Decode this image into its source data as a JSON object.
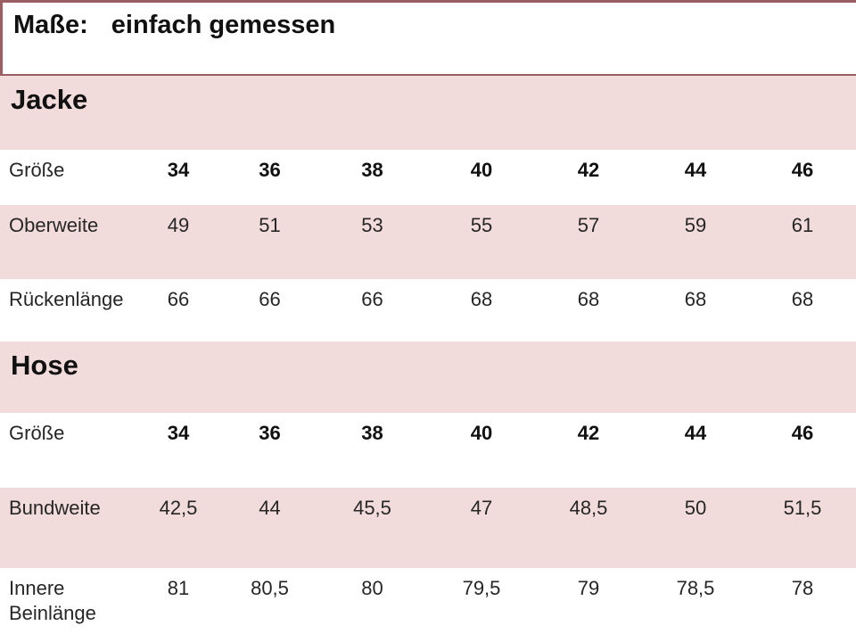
{
  "header": {
    "title_label": "Maße:",
    "title_subtitle": "einfach gemessen"
  },
  "colors": {
    "pink": "#F2DCDB",
    "maroon": "#9A5F62",
    "text": "#262626"
  },
  "tables": [
    {
      "section": "Jacke",
      "rows": [
        {
          "label": "Größe",
          "values": [
            "34",
            "36",
            "38",
            "40",
            "42",
            "44",
            "46"
          ]
        },
        {
          "label": "Oberweite",
          "values": [
            "49",
            "51",
            "53",
            "55",
            "57",
            "59",
            "61"
          ]
        },
        {
          "label": "Rückenlänge",
          "values": [
            "66",
            "66",
            "66",
            "68",
            "68",
            "68",
            "68"
          ]
        }
      ]
    },
    {
      "section": "Hose",
      "rows": [
        {
          "label": "Größe",
          "values": [
            "34",
            "36",
            "38",
            "40",
            "42",
            "44",
            "46"
          ]
        },
        {
          "label": "Bundweite",
          "values": [
            "42,5",
            "44",
            "45,5",
            "47",
            "48,5",
            "50",
            "51,5"
          ]
        },
        {
          "label": "Innere Beinlänge",
          "values": [
            "81",
            "80,5",
            "80",
            "79,5",
            "79",
            "78,5",
            "78"
          ]
        }
      ]
    }
  ]
}
